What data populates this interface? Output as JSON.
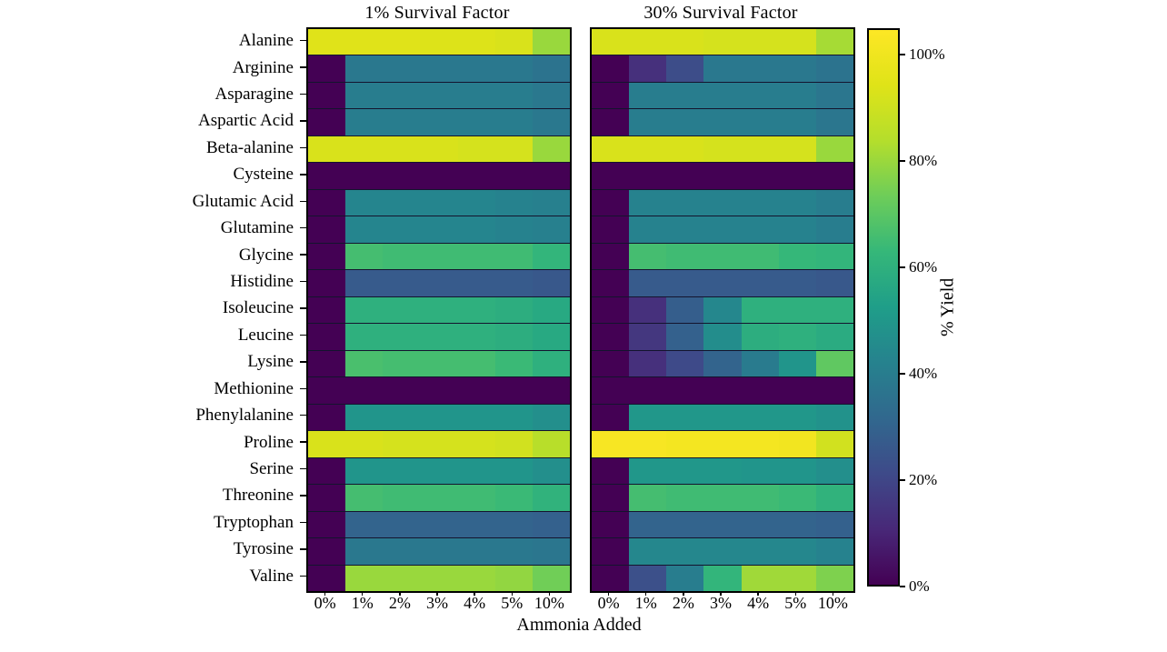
{
  "chart_data": {
    "type": "heatmap",
    "colormap": "viridis",
    "xlabel": "Ammonia Added",
    "rows": [
      "Alanine",
      "Arginine",
      "Asparagine",
      "Aspartic Acid",
      "Beta-alanine",
      "Cysteine",
      "Glutamic Acid",
      "Glutamine",
      "Glycine",
      "Histidine",
      "Isoleucine",
      "Leucine",
      "Lysine",
      "Methionine",
      "Phenylalanine",
      "Proline",
      "Serine",
      "Threonine",
      "Tryptophan",
      "Tyrosine",
      "Valine"
    ],
    "columns": [
      "0%",
      "1%",
      "2%",
      "3%",
      "4%",
      "5%",
      "10%"
    ],
    "panels": [
      {
        "title": "1% Survival Factor",
        "values": [
          [
            95,
            95,
            95,
            94,
            94,
            93,
            80
          ],
          [
            0,
            38,
            38,
            38,
            38,
            38,
            36
          ],
          [
            0,
            40,
            40,
            40,
            40,
            40,
            38
          ],
          [
            0,
            40,
            40,
            40,
            40,
            40,
            38
          ],
          [
            93,
            93,
            93,
            93,
            92,
            92,
            80
          ],
          [
            0,
            0,
            0,
            0,
            0,
            0,
            0
          ],
          [
            0,
            43,
            43,
            43,
            43,
            42,
            41
          ],
          [
            0,
            43,
            43,
            43,
            43,
            42,
            41
          ],
          [
            0,
            66,
            65,
            65,
            65,
            65,
            62
          ],
          [
            0,
            27,
            27,
            27,
            27,
            27,
            26
          ],
          [
            0,
            60,
            60,
            60,
            60,
            59,
            57
          ],
          [
            0,
            60,
            60,
            60,
            60,
            59,
            57
          ],
          [
            0,
            67,
            66,
            66,
            66,
            64,
            60
          ],
          [
            0,
            0,
            0,
            0,
            0,
            0,
            0
          ],
          [
            0,
            49,
            49,
            49,
            49,
            49,
            47
          ],
          [
            93,
            93,
            92,
            92,
            92,
            91,
            85
          ],
          [
            0,
            49,
            49,
            49,
            49,
            49,
            47
          ],
          [
            0,
            66,
            65,
            65,
            65,
            64,
            61
          ],
          [
            0,
            30,
            30,
            30,
            30,
            30,
            29
          ],
          [
            0,
            38,
            38,
            38,
            38,
            38,
            37
          ],
          [
            0,
            80,
            80,
            80,
            80,
            79,
            74
          ]
        ]
      },
      {
        "title": "30% Survival Factor",
        "values": [
          [
            93,
            93,
            93,
            92,
            92,
            92,
            82
          ],
          [
            0,
            13,
            22,
            38,
            38,
            38,
            36
          ],
          [
            0,
            40,
            40,
            40,
            40,
            40,
            37
          ],
          [
            0,
            40,
            40,
            40,
            40,
            40,
            37
          ],
          [
            93,
            93,
            93,
            92,
            92,
            92,
            80
          ],
          [
            0,
            0,
            0,
            0,
            0,
            0,
            0
          ],
          [
            0,
            42,
            42,
            42,
            42,
            42,
            40
          ],
          [
            0,
            42,
            42,
            42,
            42,
            42,
            40
          ],
          [
            0,
            66,
            65,
            65,
            65,
            63,
            62
          ],
          [
            0,
            27,
            27,
            27,
            27,
            27,
            26
          ],
          [
            0,
            13,
            28,
            44,
            60,
            60,
            60
          ],
          [
            0,
            15,
            29,
            46,
            59,
            60,
            58
          ],
          [
            0,
            13,
            21,
            30,
            39,
            49,
            71
          ],
          [
            0,
            0,
            0,
            0,
            0,
            0,
            0
          ],
          [
            0,
            50,
            50,
            50,
            50,
            50,
            48
          ],
          [
            103,
            103,
            102,
            102,
            102,
            101,
            91
          ],
          [
            0,
            50,
            50,
            50,
            49,
            49,
            47
          ],
          [
            0,
            66,
            65,
            65,
            65,
            64,
            61
          ],
          [
            0,
            30,
            30,
            30,
            30,
            30,
            29
          ],
          [
            0,
            44,
            44,
            44,
            44,
            44,
            42
          ],
          [
            0,
            23,
            40,
            62,
            81,
            81,
            76
          ]
        ]
      }
    ],
    "colorbar": {
      "label": "% Yield",
      "vmin": 0,
      "vmax": 105,
      "ticks": [
        {
          "label": "0%",
          "value": 0
        },
        {
          "label": "20%",
          "value": 20
        },
        {
          "label": "40%",
          "value": 40
        },
        {
          "label": "60%",
          "value": 60
        },
        {
          "label": "80%",
          "value": 80
        },
        {
          "label": "100%",
          "value": 100
        }
      ]
    },
    "layout": {
      "grid": false,
      "legend": "none",
      "panel_count": 2
    }
  }
}
